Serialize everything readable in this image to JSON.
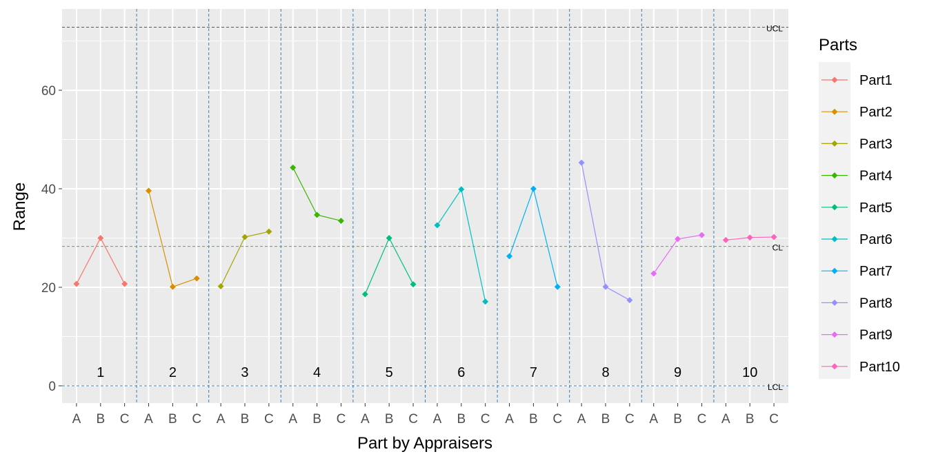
{
  "chart_data": {
    "type": "line",
    "title": "",
    "xlabel": "Part by Appraisers",
    "ylabel": "Range",
    "ylim": [
      -3.5,
      76.5
    ],
    "yticks": [
      0,
      20,
      40,
      60
    ],
    "appraisers": [
      "A",
      "B",
      "C"
    ],
    "part_labels": [
      "1",
      "2",
      "3",
      "4",
      "5",
      "6",
      "7",
      "8",
      "9",
      "10"
    ],
    "legend_title": "Parts",
    "legend_position": "right",
    "grid": true,
    "reference_lines": [
      {
        "label": "UCL",
        "value": 72.8,
        "color": "#e41a1c"
      },
      {
        "label": "CL",
        "value": 28.3,
        "color": "#4daf4a"
      },
      {
        "label": "LCL",
        "value": 0,
        "color": "#377eb8"
      }
    ],
    "separator_color": "#377eb8",
    "series": [
      {
        "name": "Part1",
        "color": "#F8766D",
        "values": [
          20.7,
          30.0,
          20.7
        ]
      },
      {
        "name": "Part2",
        "color": "#D89000",
        "values": [
          39.6,
          20.1,
          21.8
        ]
      },
      {
        "name": "Part3",
        "color": "#A3A500",
        "values": [
          20.2,
          30.2,
          31.3
        ]
      },
      {
        "name": "Part4",
        "color": "#39B600",
        "values": [
          44.3,
          34.7,
          33.5
        ]
      },
      {
        "name": "Part5",
        "color": "#00BF7D",
        "values": [
          18.6,
          30.0,
          20.6
        ]
      },
      {
        "name": "Part6",
        "color": "#00BFC4",
        "values": [
          32.6,
          39.9,
          17.1
        ]
      },
      {
        "name": "Part7",
        "color": "#00B0F6",
        "values": [
          26.3,
          40.0,
          20.1
        ]
      },
      {
        "name": "Part8",
        "color": "#9590FF",
        "values": [
          45.3,
          20.1,
          17.4
        ]
      },
      {
        "name": "Part9",
        "color": "#E76BF3",
        "values": [
          22.8,
          29.8,
          30.6
        ]
      },
      {
        "name": "Part10",
        "color": "#FF62BC",
        "values": [
          29.6,
          30.1,
          30.2
        ]
      }
    ]
  }
}
